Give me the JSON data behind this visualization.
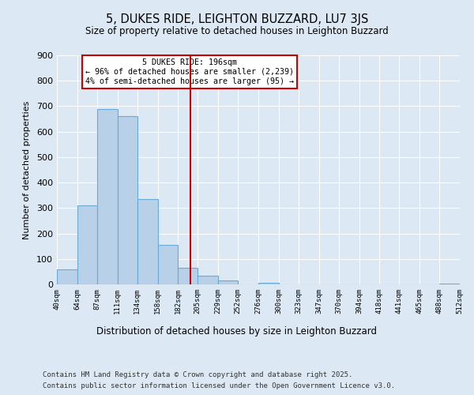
{
  "title": "5, DUKES RIDE, LEIGHTON BUZZARD, LU7 3JS",
  "subtitle": "Size of property relative to detached houses in Leighton Buzzard",
  "xlabel": "Distribution of detached houses by size in Leighton Buzzard",
  "ylabel": "Number of detached properties",
  "bar_edges": [
    40,
    64,
    87,
    111,
    134,
    158,
    182,
    205,
    229,
    252,
    276,
    300,
    323,
    347,
    370,
    394,
    418,
    441,
    465,
    488,
    512
  ],
  "bar_heights": [
    60,
    310,
    690,
    660,
    335,
    155,
    65,
    35,
    15,
    0,
    5,
    0,
    0,
    0,
    0,
    0,
    0,
    0,
    0,
    3
  ],
  "tick_labels": [
    "40sqm",
    "64sqm",
    "87sqm",
    "111sqm",
    "134sqm",
    "158sqm",
    "182sqm",
    "205sqm",
    "229sqm",
    "252sqm",
    "276sqm",
    "300sqm",
    "323sqm",
    "347sqm",
    "370sqm",
    "394sqm",
    "418sqm",
    "441sqm",
    "465sqm",
    "488sqm",
    "512sqm"
  ],
  "bar_color": "#b8d0e8",
  "bar_edge_color": "#6aaad4",
  "vline_x": 196,
  "vline_color": "#cc0000",
  "annotation_title": "5 DUKES RIDE: 196sqm",
  "annotation_line1": "← 96% of detached houses are smaller (2,239)",
  "annotation_line2": "4% of semi-detached houses are larger (95) →",
  "annotation_box_color": "#ffffff",
  "annotation_box_edge": "#cc0000",
  "ylim": [
    0,
    900
  ],
  "yticks": [
    0,
    100,
    200,
    300,
    400,
    500,
    600,
    700,
    800,
    900
  ],
  "background_color": "#dce9f5",
  "footer_line1": "Contains HM Land Registry data © Crown copyright and database right 2025.",
  "footer_line2": "Contains public sector information licensed under the Open Government Licence v3.0."
}
